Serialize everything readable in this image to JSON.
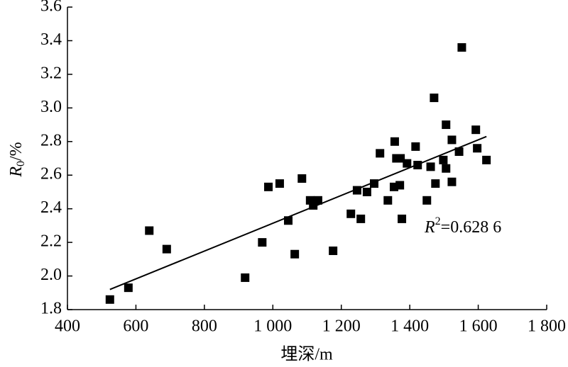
{
  "chart_data": {
    "type": "scatter",
    "x_label": "埋深/m",
    "y_label": {
      "base": "R",
      "sub": "0",
      "rest": "/%"
    },
    "annotation": {
      "base": "R",
      "sup": "2",
      "rest": "=0.628 6"
    },
    "color": "#000000",
    "xlim": [
      400,
      1800
    ],
    "xticks": [
      400,
      600,
      800,
      {
        "value": 1000,
        "label": "1 000"
      },
      {
        "value": 1200,
        "label": "1 200"
      },
      {
        "value": 1400,
        "label": "1 400"
      },
      {
        "value": 1600,
        "label": "1 600"
      },
      {
        "value": 1800,
        "label": "1 800"
      }
    ],
    "ylim": [
      1.8,
      3.6
    ],
    "yticks": [
      1.8,
      {
        "value": 2.0,
        "label": "2.0"
      },
      2.2,
      2.4,
      2.6,
      2.8,
      {
        "value": 3.0,
        "label": "3.0"
      },
      3.2,
      3.4,
      3.6
    ],
    "x": [
      524,
      578,
      639,
      690,
      919,
      969,
      987,
      1020,
      1045,
      1064,
      1085,
      1109,
      1118,
      1132,
      1176,
      1228,
      1246,
      1257,
      1275,
      1296,
      1313,
      1336,
      1354,
      1356,
      1361,
      1371,
      1373,
      1377,
      1392,
      1417,
      1423,
      1450,
      1461,
      1471,
      1475,
      1498,
      1506,
      1506,
      1523,
      1523,
      1544,
      1552,
      1593,
      1597,
      1624
    ],
    "values": [
      1.86,
      1.93,
      2.27,
      2.16,
      1.99,
      2.2,
      2.53,
      2.55,
      2.33,
      2.13,
      2.58,
      2.45,
      2.42,
      2.45,
      2.15,
      2.37,
      2.51,
      2.34,
      2.5,
      2.55,
      2.73,
      2.45,
      2.53,
      2.8,
      2.7,
      2.54,
      2.7,
      2.34,
      2.67,
      2.77,
      2.66,
      2.45,
      2.65,
      3.06,
      2.55,
      2.69,
      2.9,
      2.64,
      2.81,
      2.56,
      2.74,
      3.36,
      2.87,
      2.76,
      2.69
    ],
    "trendline": {
      "x": [
        524,
        1624
      ],
      "values": [
        1.92,
        2.83
      ]
    }
  }
}
